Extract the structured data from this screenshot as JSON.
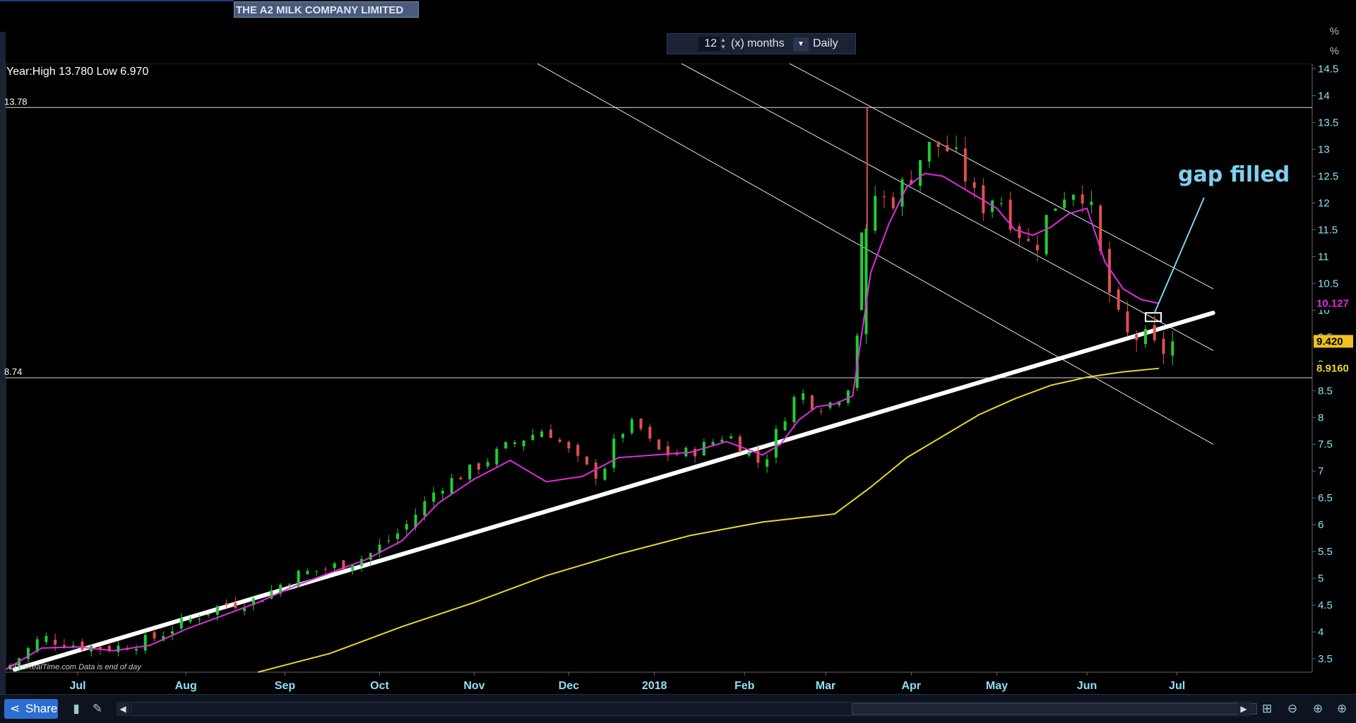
{
  "header": {
    "title": "THE A2 MILK COMPANY LIMITED",
    "period_value": "12",
    "period_unit_label": "(x) months",
    "interval_label": "Daily",
    "pct_symbol": "%"
  },
  "icons": {
    "share": "share-icon",
    "spin": "spinner-icon",
    "dropdown": "chevron-down-icon",
    "zoom_in": "zoom-in-icon",
    "zoom_out": "zoom-out-icon",
    "zoom_fit": "zoom-fit-icon",
    "scroll_left": "chevron-left-icon",
    "scroll_right": "chevron-right-icon"
  },
  "footer": {
    "share_label": "Share",
    "copyright": "©ProRealTime.com  Data is end of day"
  },
  "colors": {
    "background": "#000000",
    "up_candle": "#22cc33",
    "down_candle": "#e05050",
    "ma_short": "#e02be0",
    "ma_long": "#e8d82a",
    "trendline": "#ffffff",
    "annotation": "#7fd0f0",
    "axis_text": "#8fe0f5"
  },
  "chart_data": {
    "type": "candlestick",
    "title": "THE A2 MILK COMPANY LIMITED",
    "subtitle": "Year:High 13.780 Low 6.970",
    "xlabel": "",
    "ylabel": "",
    "x_ticks": [
      "Jul",
      "Aug",
      "Sep",
      "Oct",
      "Nov",
      "Dec",
      "2018",
      "Feb",
      "Mar",
      "Apr",
      "May",
      "Jun",
      "Jul"
    ],
    "y_ticks": [
      3.5,
      4,
      4.5,
      5,
      5.5,
      6,
      6.5,
      7,
      7.5,
      8,
      8.5,
      9,
      9.5,
      10,
      10.5,
      11,
      11.5,
      12,
      12.5,
      13,
      13.5,
      14,
      14.5
    ],
    "ylim": [
      3.25,
      14.6
    ],
    "horizontal_levels": [
      {
        "label": "13.78",
        "value": 13.78
      },
      {
        "label": "8.74",
        "value": 8.74
      }
    ],
    "price_tags": [
      {
        "label": "10.127",
        "value": 10.127,
        "series": "ma_short"
      },
      {
        "label": "9.420",
        "value": 9.42,
        "series": "last"
      },
      {
        "label": "8.9160",
        "value": 8.916,
        "series": "ma_long"
      }
    ],
    "annotation": {
      "text": "gap filled"
    },
    "series": [
      {
        "name": "",
        "kind": "close_approx",
        "t": [
          0,
          4,
          8,
          12,
          16,
          20,
          24,
          28,
          32,
          36,
          40,
          44,
          48,
          52,
          56,
          60,
          64,
          66,
          68,
          70,
          72,
          74,
          76,
          78,
          80,
          84,
          86,
          88,
          90,
          92,
          94,
          96,
          98,
          100,
          102,
          104,
          106,
          108,
          110,
          112,
          114,
          116,
          118,
          120,
          122,
          124,
          126,
          128,
          130
        ],
        "values": [
          3.3,
          3.9,
          3.75,
          3.7,
          3.85,
          4.2,
          4.5,
          4.6,
          5.05,
          5.2,
          5.4,
          5.9,
          6.7,
          7.05,
          7.5,
          7.8,
          7.1,
          6.9,
          7.7,
          7.9,
          7.4,
          7.3,
          7.35,
          7.5,
          7.7,
          7.1,
          7.9,
          8.5,
          8.2,
          8.3,
          8.7,
          12.2,
          12.0,
          12.4,
          13.0,
          13.1,
          12.7,
          11.9,
          12.2,
          11.6,
          11.1,
          11.9,
          12.3,
          12.2,
          10.6,
          9.5,
          9.5,
          9.2,
          9.45
        ]
      },
      {
        "name": "",
        "kind": "ma_short",
        "t": [
          0,
          4,
          8,
          12,
          16,
          20,
          24,
          28,
          32,
          36,
          40,
          44,
          48,
          52,
          56,
          60,
          64,
          68,
          72,
          76,
          80,
          84,
          86,
          88,
          90,
          92,
          94,
          96,
          98,
          100,
          102,
          104,
          106,
          108,
          110,
          112,
          114,
          116,
          118,
          120,
          122,
          124,
          126,
          128
        ],
        "values": [
          3.3,
          3.7,
          3.72,
          3.65,
          3.75,
          4.05,
          4.3,
          4.55,
          4.85,
          5.1,
          5.35,
          5.7,
          6.4,
          6.85,
          7.2,
          6.8,
          6.9,
          7.25,
          7.3,
          7.35,
          7.55,
          7.3,
          7.5,
          7.95,
          8.2,
          8.25,
          8.4,
          10.7,
          11.6,
          12.3,
          12.55,
          12.5,
          12.3,
          12.1,
          11.9,
          11.5,
          11.4,
          11.55,
          11.8,
          11.9,
          10.9,
          10.4,
          10.2,
          10.127
        ]
      },
      {
        "name": "",
        "kind": "ma_long",
        "t": [
          28,
          36,
          44,
          52,
          60,
          68,
          76,
          84,
          92,
          96,
          100,
          104,
          108,
          112,
          116,
          120,
          124,
          128
        ],
        "values": [
          3.25,
          3.6,
          4.1,
          4.55,
          5.05,
          5.45,
          5.8,
          6.05,
          6.2,
          6.7,
          7.25,
          7.65,
          8.05,
          8.35,
          8.6,
          8.75,
          8.85,
          8.916
        ]
      }
    ],
    "trendlines": [
      {
        "kind": "support",
        "from": [
          1,
          3.3
        ],
        "to": [
          134,
          9.95
        ]
      },
      {
        "kind": "channel",
        "from": [
          59,
          14.6
        ],
        "to": [
          134,
          7.5
        ]
      },
      {
        "kind": "channel",
        "from": [
          75,
          14.6
        ],
        "to": [
          134,
          9.25
        ]
      },
      {
        "kind": "channel",
        "from": [
          87,
          14.6
        ],
        "to": [
          134,
          10.4
        ]
      }
    ]
  }
}
